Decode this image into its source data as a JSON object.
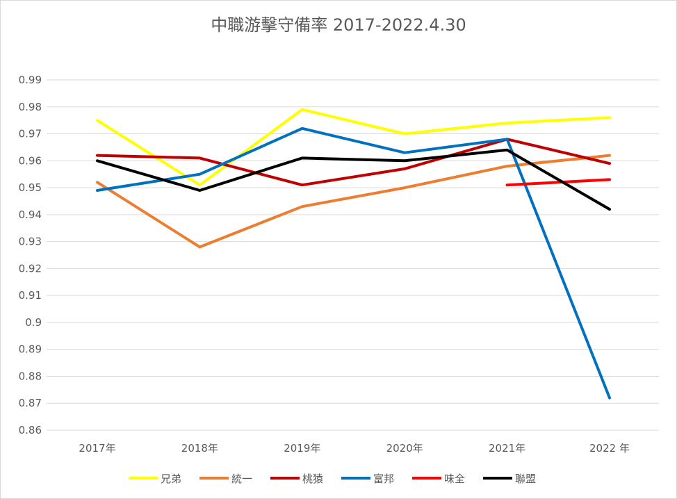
{
  "chart_data": {
    "type": "line",
    "title": "中職游擊守備率 2017-2022.4.30",
    "xlabel": "",
    "ylabel": "",
    "categories": [
      "2017年",
      "2018年",
      "2019年",
      "2020年",
      "2021年",
      "2022 年"
    ],
    "ylim": [
      0.86,
      0.99
    ],
    "yticks": [
      "0.86",
      "0.87",
      "0.88",
      "0.89",
      "0.9",
      "0.91",
      "0.92",
      "0.93",
      "0.94",
      "0.95",
      "0.96",
      "0.97",
      "0.98",
      "0.99"
    ],
    "grid": true,
    "legend_position": "bottom",
    "series": [
      {
        "name": "兄弟",
        "color": "#FFFF00",
        "values": [
          0.975,
          0.951,
          0.979,
          0.97,
          0.974,
          0.976
        ]
      },
      {
        "name": "統一",
        "color": "#ED7D31",
        "values": [
          0.952,
          0.928,
          0.943,
          0.95,
          0.958,
          0.962
        ]
      },
      {
        "name": "桃猿",
        "color": "#C00000",
        "values": [
          0.962,
          0.961,
          0.951,
          0.957,
          0.968,
          0.959
        ]
      },
      {
        "name": "富邦",
        "color": "#0070C0",
        "values": [
          0.949,
          0.955,
          0.972,
          0.963,
          0.968,
          0.872
        ]
      },
      {
        "name": "味全",
        "color": "#FF0000",
        "values": [
          null,
          null,
          null,
          null,
          0.951,
          0.953
        ]
      },
      {
        "name": "聯盟",
        "color": "#000000",
        "values": [
          0.96,
          0.949,
          0.961,
          0.96,
          0.964,
          0.942
        ]
      }
    ]
  }
}
